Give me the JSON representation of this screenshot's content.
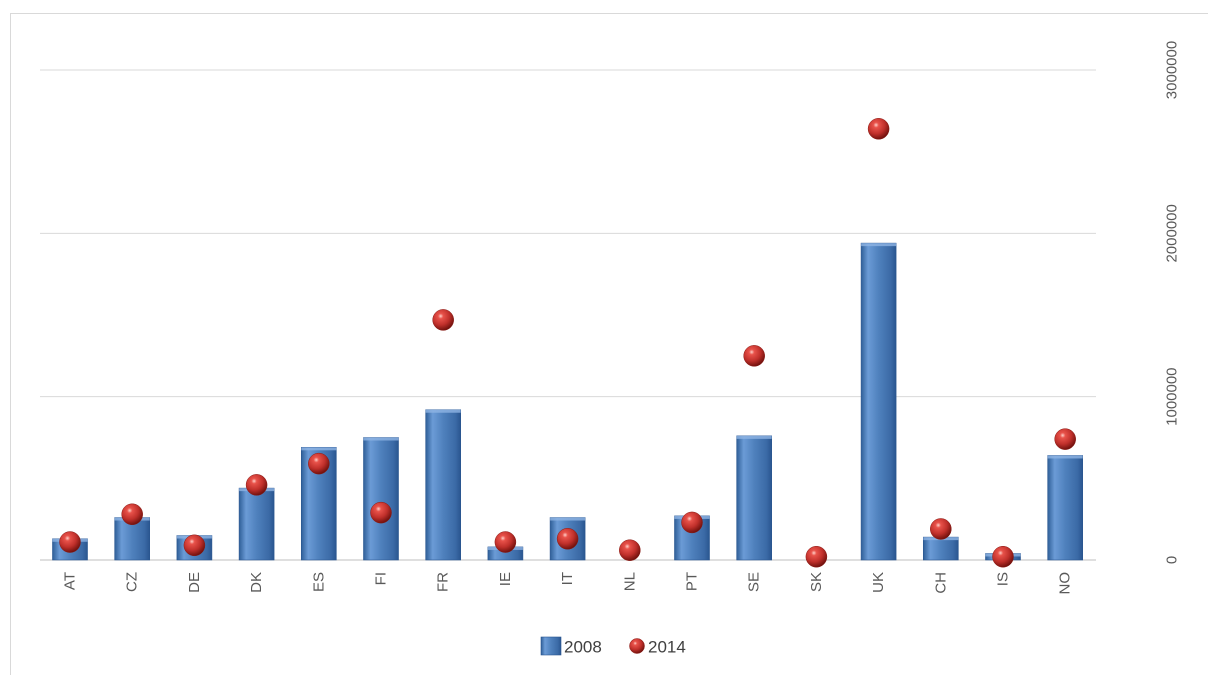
{
  "chart_data": {
    "type": "bar",
    "categories": [
      "AT",
      "CZ",
      "DE",
      "DK",
      "ES",
      "FI",
      "FR",
      "IE",
      "IT",
      "NL",
      "PT",
      "SE",
      "SK",
      "UK",
      "CH",
      "IS",
      "NO"
    ],
    "series": [
      {
        "name": "2008",
        "type": "bar",
        "values": [
          130000,
          260000,
          150000,
          440000,
          690000,
          750000,
          920000,
          80000,
          260000,
          0,
          270000,
          760000,
          0,
          1940000,
          140000,
          40000,
          640000
        ]
      },
      {
        "name": "2014",
        "type": "scatter",
        "values": [
          110000,
          280000,
          90000,
          460000,
          590000,
          290000,
          1470000,
          110000,
          130000,
          60000,
          230000,
          1250000,
          20000,
          2640000,
          190000,
          20000,
          740000
        ]
      }
    ],
    "ylim": [
      0,
      3000000
    ],
    "yticks": [
      "0",
      "1000000",
      "2000000",
      "3000000"
    ],
    "y_axis_position": "right",
    "grid": true,
    "legend": {
      "position": "bottom",
      "entries": [
        "2008",
        "2014"
      ]
    },
    "colors": {
      "bar": "#4f81bd",
      "bar_dark": "#2f5f98",
      "point": "#c0302b",
      "point_dark": "#7a1410"
    }
  }
}
